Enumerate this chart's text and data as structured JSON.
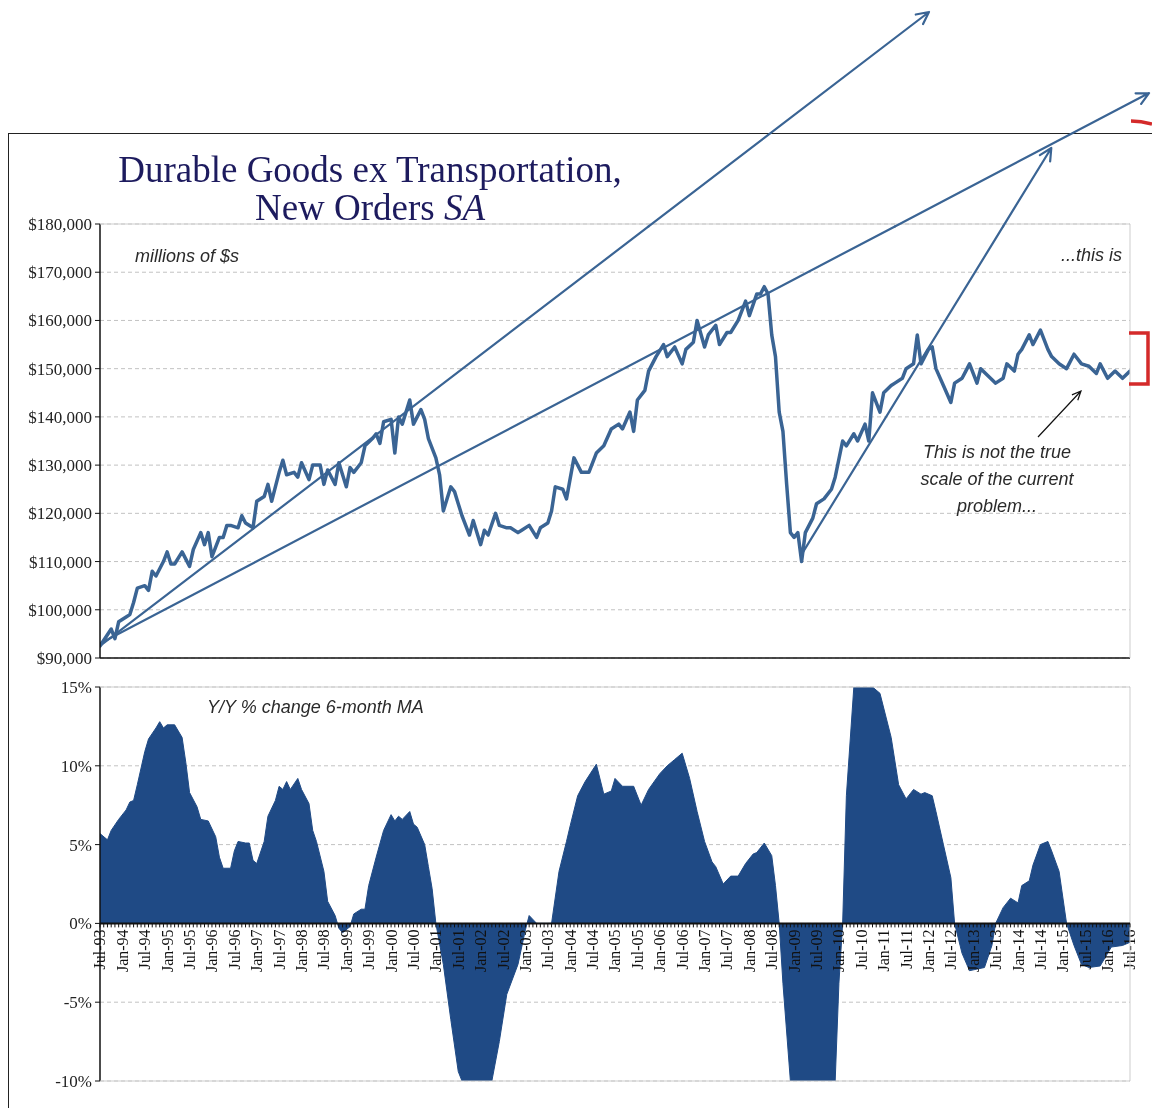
{
  "chart_data": [
    {
      "type": "line",
      "title": "Durable Goods ex Transportation,\nNew Orders SA",
      "ylabel": "millions of $s",
      "annotations": [
        "...this is",
        "This is not the true scale of the current problem..."
      ],
      "series": [
        {
          "color": "#3a6494",
          "x": [
            "1993-07",
            "1993-10",
            "1993-11",
            "1993-12",
            "1994-02",
            "1994-03",
            "1994-04",
            "1994-05",
            "1994-07",
            "1994-08",
            "1994-09",
            "1994-10",
            "1994-12",
            "1995-01",
            "1995-02",
            "1995-03",
            "1995-05",
            "1995-07",
            "1995-08",
            "1995-10",
            "1995-11",
            "1995-12",
            "1996-01",
            "1996-03",
            "1996-04",
            "1996-05",
            "1996-06",
            "1996-08",
            "1996-09",
            "1996-10",
            "1996-12",
            "1997-01",
            "1997-03",
            "1997-04",
            "1997-05",
            "1997-07",
            "1997-08",
            "1997-09",
            "1997-11",
            "1997-12",
            "1998-01",
            "1998-03",
            "1998-04",
            "1998-06",
            "1998-07",
            "1998-08",
            "1998-10",
            "1998-11",
            "1999-01",
            "1999-02",
            "1999-03",
            "1999-05",
            "1999-06",
            "1999-08",
            "1999-09",
            "1999-10",
            "1999-11",
            "2000-01",
            "2000-02",
            "2000-03",
            "2000-04",
            "2000-06",
            "2000-07",
            "2000-09",
            "2000-10",
            "2000-11",
            "2001-01",
            "2001-02",
            "2001-03",
            "2001-05",
            "2001-06",
            "2001-07",
            "2001-08",
            "2001-10",
            "2001-11",
            "2002-01",
            "2002-02",
            "2002-03",
            "2002-05",
            "2002-06",
            "2002-08",
            "2002-09",
            "2002-11",
            "2002-12",
            "2003-02",
            "2003-04",
            "2003-05",
            "2003-07",
            "2003-08",
            "2003-09",
            "2003-11",
            "2003-12",
            "2004-02",
            "2004-04",
            "2004-06",
            "2004-08",
            "2004-10",
            "2004-12",
            "2005-02",
            "2005-03",
            "2005-05",
            "2005-06",
            "2005-07",
            "2005-09",
            "2005-10",
            "2005-12",
            "2006-02",
            "2006-03",
            "2006-05",
            "2006-07",
            "2006-08",
            "2006-10",
            "2006-11",
            "2007-01",
            "2007-02",
            "2007-04",
            "2007-05",
            "2007-07",
            "2007-08",
            "2007-10",
            "2007-12",
            "2008-01",
            "2008-03",
            "2008-04",
            "2008-05",
            "2008-06",
            "2008-07",
            "2008-08",
            "2008-09",
            "2008-10",
            "2008-11",
            "2008-12",
            "2009-01",
            "2009-02",
            "2009-03",
            "2009-04",
            "2009-06",
            "2009-07",
            "2009-09",
            "2009-11",
            "2009-12",
            "2010-02",
            "2010-03",
            "2010-05",
            "2010-06",
            "2010-08",
            "2010-09",
            "2010-10",
            "2010-12",
            "2011-01",
            "2011-03",
            "2011-04",
            "2011-06",
            "2011-07",
            "2011-09",
            "2011-10",
            "2011-11",
            "2012-01",
            "2012-02",
            "2012-03",
            "2012-05",
            "2012-07",
            "2012-08",
            "2012-10",
            "2012-11",
            "2012-12",
            "2013-02",
            "2013-03",
            "2013-05",
            "2013-07",
            "2013-09",
            "2013-10",
            "2013-12",
            "2014-01",
            "2014-02",
            "2014-04",
            "2014-05",
            "2014-07",
            "2014-09",
            "2014-10",
            "2014-12",
            "2015-02",
            "2015-04",
            "2015-06",
            "2015-08",
            "2015-10",
            "2015-11",
            "2016-01",
            "2016-03",
            "2016-05",
            "2016-07"
          ],
          "values": [
            92500,
            96000,
            94000,
            97500,
            98500,
            99000,
            101500,
            104500,
            105000,
            104000,
            108000,
            107000,
            110000,
            112000,
            109500,
            109500,
            112000,
            109000,
            112500,
            116000,
            113500,
            116000,
            111000,
            115000,
            115000,
            117500,
            117500,
            117000,
            119500,
            118000,
            117000,
            122500,
            123500,
            126000,
            122500,
            128500,
            131000,
            128000,
            128500,
            127500,
            130500,
            127000,
            130000,
            130000,
            126000,
            129000,
            126000,
            130500,
            125500,
            129500,
            128500,
            130500,
            134000,
            135500,
            136500,
            134500,
            139000,
            139500,
            132500,
            140000,
            138500,
            143500,
            138500,
            141500,
            139500,
            135500,
            131500,
            128000,
            120500,
            125500,
            124500,
            122000,
            119500,
            115500,
            118500,
            113500,
            116500,
            115500,
            120000,
            117500,
            117000,
            117000,
            116000,
            116500,
            117500,
            115000,
            117000,
            118000,
            120500,
            125500,
            125000,
            123000,
            131500,
            128500,
            128500,
            132500,
            134000,
            137500,
            138500,
            137500,
            141000,
            137000,
            143500,
            145500,
            149500,
            152500,
            155000,
            152500,
            154500,
            151000,
            154000,
            155500,
            160000,
            154500,
            157000,
            159000,
            155000,
            157500,
            157500,
            160000,
            164000,
            161000,
            165500,
            165500,
            167000,
            165500,
            157000,
            152500,
            141000,
            137000,
            126000,
            116000,
            115000,
            116000,
            110000,
            116000,
            119000,
            122000,
            123000,
            125000,
            127500,
            135000,
            134000,
            136500,
            135000,
            138500,
            135000,
            145000,
            141000,
            145000,
            146500,
            147000,
            148000,
            150000,
            151000,
            157000,
            151000,
            154000,
            154500,
            150000,
            146500,
            143000,
            147000,
            148000,
            149500,
            151000,
            147000,
            150000,
            148500,
            147000,
            148000,
            151000,
            149500,
            153000,
            154000,
            157000,
            155000,
            158000,
            154000,
            152500,
            151000,
            150000,
            153000,
            151000,
            150500,
            149000,
            151000,
            148000,
            149500,
            148000,
            149500
          ]
        },
        {
          "color": "#3a6494",
          "x": [
            "1993-07",
            "2005-10"
          ],
          "values": [
            92500,
            179500
          ]
        },
        {
          "color": "#3a6494",
          "x": [
            "1993-07",
            "2011-04"
          ],
          "values": [
            93000,
            179500
          ]
        },
        {
          "color": "#3a6494",
          "x": [
            "2009-03",
            "2013-09"
          ],
          "values": [
            111500,
            179500
          ]
        }
      ],
      "xlim": [
        "1993-07",
        "2016-07"
      ],
      "xticks": [
        {
          "value": "1993-07",
          "label": null
        },
        {
          "value": "1994-01",
          "label": null
        },
        {
          "value": "1994-07",
          "label": null
        },
        {
          "value": "1995-01",
          "label": null
        },
        {
          "value": "1995-07",
          "label": null
        },
        {
          "value": "1996-01",
          "label": null
        },
        {
          "value": "1996-07",
          "label": null
        },
        {
          "value": "1997-01",
          "label": null
        },
        {
          "value": "1997-07",
          "label": null
        },
        {
          "value": "1998-01",
          "label": null
        },
        {
          "value": "1998-07",
          "label": null
        },
        {
          "value": "1999-01",
          "label": null
        },
        {
          "value": "1999-07",
          "label": null
        },
        {
          "value": "2000-01",
          "label": null
        },
        {
          "value": "2000-07",
          "label": null
        },
        {
          "value": "2001-01",
          "label": null
        },
        {
          "value": "2001-07",
          "label": null
        },
        {
          "value": "2002-01",
          "label": null
        },
        {
          "value": "2002-07",
          "label": null
        },
        {
          "value": "2003-01",
          "label": null
        },
        {
          "value": "2003-07",
          "label": null
        },
        {
          "value": "2004-01",
          "label": null
        },
        {
          "value": "2004-07",
          "label": null
        },
        {
          "value": "2005-01",
          "label": null
        },
        {
          "value": "2005-07",
          "label": null
        },
        {
          "value": "2006-01",
          "label": null
        },
        {
          "value": "2006-07",
          "label": null
        },
        {
          "value": "2007-01",
          "label": null
        },
        {
          "value": "2007-07",
          "label": null
        },
        {
          "value": "2008-01",
          "label": null
        },
        {
          "value": "2008-07",
          "label": null
        },
        {
          "value": "2009-01",
          "label": null
        },
        {
          "value": "2009-07",
          "label": null
        },
        {
          "value": "2010-01",
          "label": null
        },
        {
          "value": "2010-07",
          "label": null
        },
        {
          "value": "2011-01",
          "label": null
        },
        {
          "value": "2011-07",
          "label": null
        },
        {
          "value": "2012-01",
          "label": null
        },
        {
          "value": "2012-07",
          "label": null
        },
        {
          "value": "2013-01",
          "label": null
        },
        {
          "value": "2013-07",
          "label": null
        },
        {
          "value": "2014-01",
          "label": null
        },
        {
          "value": "2014-07",
          "label": null
        },
        {
          "value": "2015-01",
          "label": null
        },
        {
          "value": "2015-07",
          "label": null
        },
        {
          "value": "2016-01",
          "label": null
        },
        {
          "value": "2016-07",
          "label": null
        }
      ],
      "ylim": [
        90000,
        180000
      ],
      "yticks": [
        {
          "value": 90000,
          "label": "$90,000"
        },
        {
          "value": 100000,
          "label": "$100,000"
        },
        {
          "value": 110000,
          "label": "$110,000"
        },
        {
          "value": 120000,
          "label": "$120,000"
        },
        {
          "value": 130000,
          "label": "$130,000"
        },
        {
          "value": 140000,
          "label": "$140,000"
        },
        {
          "value": 150000,
          "label": "$150,000"
        },
        {
          "value": 160000,
          "label": "$160,000"
        },
        {
          "value": 170000,
          "label": "$170,000"
        },
        {
          "value": 180000,
          "label": "$180,000"
        }
      ],
      "grid": "y",
      "tick_labels": "y"
    },
    {
      "type": "area",
      "ylabel": "Y/Y % change 6-month MA",
      "series": [
        {
          "color": "#1f4a85",
          "x": [
            "1993-07",
            "1993-09",
            "1993-10",
            "1993-12",
            "1994-02",
            "1994-03",
            "1994-04",
            "1994-05",
            "1994-07",
            "1994-08",
            "1994-10",
            "1994-11",
            "1994-12",
            "1995-01",
            "1995-03",
            "1995-05",
            "1995-06",
            "1995-07",
            "1995-09",
            "1995-10",
            "1995-12",
            "1996-02",
            "1996-03",
            "1996-04",
            "1996-06",
            "1996-07",
            "1996-08",
            "1996-10",
            "1996-11",
            "1996-12",
            "1997-01",
            "1997-03",
            "1997-04",
            "1997-06",
            "1997-07",
            "1997-08",
            "1997-09",
            "1997-10",
            "1997-12",
            "1998-01",
            "1998-03",
            "1998-04",
            "1998-05",
            "1998-07",
            "1998-08",
            "1998-10",
            "1998-11",
            "1998-12",
            "1999-02",
            "1999-03",
            "1999-05",
            "1999-06",
            "1999-07",
            "1999-09",
            "1999-11",
            "2000-01",
            "2000-02",
            "2000-03",
            "2000-04",
            "2000-06",
            "2000-07",
            "2000-08",
            "2000-10",
            "2000-11",
            "2000-12",
            "2001-01",
            "2001-03",
            "2001-05",
            "2001-07",
            "2001-08",
            "2002-04",
            "2002-06",
            "2002-08",
            "2002-11",
            "2003-01",
            "2003-02",
            "2003-04",
            "2003-08",
            "2003-10",
            "2003-12",
            "2004-01",
            "2004-03",
            "2004-05",
            "2004-08",
            "2004-10",
            "2004-12",
            "2005-01",
            "2005-03",
            "2005-06",
            "2005-08",
            "2005-10",
            "2006-01",
            "2006-03",
            "2006-05",
            "2006-07",
            "2006-09",
            "2006-11",
            "2007-01",
            "2007-03",
            "2007-04",
            "2007-06",
            "2007-08",
            "2007-10",
            "2007-12",
            "2008-02",
            "2008-03",
            "2008-05",
            "2008-07",
            "2008-08",
            "2008-09",
            "2008-10",
            "2008-12",
            "2009-12",
            "2010-01",
            "2010-02",
            "2010-03",
            "2010-05",
            "2010-10",
            "2010-12",
            "2011-03",
            "2011-05",
            "2011-07",
            "2011-09",
            "2011-11",
            "2011-12",
            "2012-02",
            "2012-03",
            "2012-05",
            "2012-07",
            "2012-08",
            "2012-10",
            "2012-12",
            "2013-02",
            "2013-04",
            "2013-06",
            "2013-07",
            "2013-09",
            "2013-11",
            "2014-01",
            "2014-02",
            "2014-04",
            "2014-05",
            "2014-07",
            "2014-09",
            "2014-10",
            "2014-12",
            "2015-02",
            "2015-04",
            "2015-06",
            "2015-08",
            "2015-11",
            "2016-01",
            "2016-02",
            "2016-05",
            "2016-07"
          ],
          "values": [
            5.7,
            5.3,
            5.9,
            6.6,
            7.2,
            7.7,
            7.8,
            8.8,
            10.9,
            11.7,
            12.4,
            12.8,
            12.4,
            12.6,
            12.6,
            11.8,
            10.2,
            8.3,
            7.4,
            6.6,
            6.5,
            5.5,
            4.2,
            3.5,
            3.5,
            4.6,
            5.2,
            5.1,
            5.1,
            4.0,
            3.8,
            5.2,
            6.8,
            7.8,
            8.7,
            8.5,
            9.0,
            8.5,
            9.2,
            8.5,
            7.6,
            5.9,
            5.2,
            3.3,
            1.4,
            0.5,
            -0.3,
            -0.6,
            -0.2,
            0.6,
            0.9,
            0.9,
            2.4,
            4.2,
            5.9,
            6.9,
            6.5,
            6.8,
            6.6,
            7.1,
            6.3,
            6.1,
            5.0,
            3.6,
            2.2,
            0,
            -2.6,
            -6.1,
            -9.4,
            -10,
            -10,
            -7.5,
            -4.5,
            -2.6,
            -0.4,
            0.5,
            0,
            0,
            3.3,
            5.2,
            6.2,
            8.1,
            9.0,
            10.1,
            8.2,
            8.4,
            9.2,
            8.7,
            8.7,
            7.5,
            8.5,
            9.5,
            10.0,
            10.4,
            10.8,
            9.2,
            7.1,
            5.2,
            3.9,
            3.6,
            2.5,
            3.0,
            3.0,
            3.8,
            4.4,
            4.5,
            5.1,
            4.3,
            2.4,
            0,
            -3.8,
            -10,
            -10,
            -3.8,
            0,
            8.1,
            15,
            15,
            14.6,
            11.8,
            8.8,
            7.9,
            8.5,
            8.2,
            8.3,
            8.1,
            7.1,
            5.0,
            2.9,
            0,
            -1.9,
            -3.0,
            -2.9,
            -2.8,
            -1.4,
            0,
            1.0,
            1.6,
            1.3,
            2.4,
            2.7,
            3.7,
            5.0,
            5.2,
            4.6,
            3.3,
            0,
            -1.4,
            -2.6,
            -2.8,
            -2.7,
            -1.9,
            -1.5,
            -1.4,
            -1.2
          ]
        }
      ],
      "xlim": [
        "1993-07",
        "2016-07"
      ],
      "xticks": [
        {
          "value": "1993-07",
          "label": "Jul-93"
        },
        {
          "value": "1994-01",
          "label": "Jan-94"
        },
        {
          "value": "1994-07",
          "label": "Jul-94"
        },
        {
          "value": "1995-01",
          "label": "Jan-95"
        },
        {
          "value": "1995-07",
          "label": "Jul-95"
        },
        {
          "value": "1996-01",
          "label": "Jan-96"
        },
        {
          "value": "1996-07",
          "label": "Jul-96"
        },
        {
          "value": "1997-01",
          "label": "Jan-97"
        },
        {
          "value": "1997-07",
          "label": "Jul-97"
        },
        {
          "value": "1998-01",
          "label": "Jan-98"
        },
        {
          "value": "1998-07",
          "label": "Jul-98"
        },
        {
          "value": "1999-01",
          "label": "Jan-99"
        },
        {
          "value": "1999-07",
          "label": "Jul-99"
        },
        {
          "value": "2000-01",
          "label": "Jan-00"
        },
        {
          "value": "2000-07",
          "label": "Jul-00"
        },
        {
          "value": "2001-01",
          "label": "Jan-01"
        },
        {
          "value": "2001-07",
          "label": "Jul-01"
        },
        {
          "value": "2002-01",
          "label": "Jan-02"
        },
        {
          "value": "2002-07",
          "label": "Jul-02"
        },
        {
          "value": "2003-01",
          "label": "Jan-03"
        },
        {
          "value": "2003-07",
          "label": "Jul-03"
        },
        {
          "value": "2004-01",
          "label": "Jan-04"
        },
        {
          "value": "2004-07",
          "label": "Jul-04"
        },
        {
          "value": "2005-01",
          "label": "Jan-05"
        },
        {
          "value": "2005-07",
          "label": "Jul-05"
        },
        {
          "value": "2006-01",
          "label": "Jan-06"
        },
        {
          "value": "2006-07",
          "label": "Jul-06"
        },
        {
          "value": "2007-01",
          "label": "Jan-07"
        },
        {
          "value": "2007-07",
          "label": "Jul-07"
        },
        {
          "value": "2008-01",
          "label": "Jan-08"
        },
        {
          "value": "2008-07",
          "label": "Jul-08"
        },
        {
          "value": "2009-01",
          "label": "Jan-09"
        },
        {
          "value": "2009-07",
          "label": "Jul-09"
        },
        {
          "value": "2010-01",
          "label": "Jan-10"
        },
        {
          "value": "2010-07",
          "label": "Jul-10"
        },
        {
          "value": "2011-01",
          "label": "Jan-11"
        },
        {
          "value": "2011-07",
          "label": "Jul-11"
        },
        {
          "value": "2012-01",
          "label": "Jan-12"
        },
        {
          "value": "2012-07",
          "label": "Jul-12"
        },
        {
          "value": "2013-01",
          "label": "Jan-13"
        },
        {
          "value": "2013-07",
          "label": "Jul-13"
        },
        {
          "value": "2014-01",
          "label": "Jan-14"
        },
        {
          "value": "2014-07",
          "label": "Jul-14"
        },
        {
          "value": "2015-01",
          "label": "Jan-15"
        },
        {
          "value": "2015-07",
          "label": "Jul-15"
        },
        {
          "value": "2016-01",
          "label": "Jan-16"
        },
        {
          "value": "2016-07",
          "label": "Jul-16"
        }
      ],
      "ylim": [
        -10,
        15
      ],
      "yticks": [
        {
          "value": -10,
          "label": "-10%"
        },
        {
          "value": -5,
          "label": "-5%"
        },
        {
          "value": 0,
          "label": "0%"
        },
        {
          "value": 5,
          "label": "5%"
        },
        {
          "value": 10,
          "label": "10%"
        },
        {
          "value": 15,
          "label": "15%"
        }
      ],
      "grid": "y"
    }
  ]
}
